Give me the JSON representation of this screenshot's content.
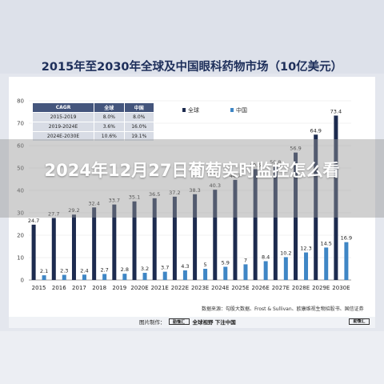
{
  "title": "2015年至2030年全球及中国眼科药物市场（10亿美元）",
  "overlay_title": "2024年12月27日葡萄实时监控怎么看",
  "source_text": "数据来源：勾股大数据、Frost & Sullivan、欧康维视生物招股书、国信证券",
  "footer": {
    "left_prefix": "图片制作：",
    "brand_logo": "勤懂汇",
    "left_suffix": "全球视野 下注中国",
    "right_logo": "勤懂汇"
  },
  "cagr_table": {
    "headers": [
      "CAGR",
      "全球",
      "中国"
    ],
    "rows": [
      [
        "2015-2019",
        "8.0%",
        "8.0%"
      ],
      [
        "2019-2024E",
        "3.6%",
        "16.0%"
      ],
      [
        "2024E-2030E",
        "10.6%",
        "19.1%"
      ]
    ]
  },
  "chart_data": {
    "type": "bar",
    "categories": [
      "2015",
      "2016",
      "2017",
      "2018",
      "2019",
      "2020E",
      "2021E",
      "2022E",
      "2023E",
      "2024E",
      "2025E",
      "2026E",
      "2027E",
      "2028E",
      "2029E",
      "2030E"
    ],
    "series": [
      {
        "name": "全球",
        "color": "#1d2b4f",
        "values": [
          24.7,
          27.7,
          29.2,
          32.4,
          33.7,
          35.1,
          36.5,
          37.2,
          38.3,
          40.3,
          44.7,
          49.5,
          50.8,
          56.9,
          64.9,
          73.4
        ]
      },
      {
        "name": "中国",
        "color": "#3f86c5",
        "values": [
          2.1,
          2.3,
          2.4,
          2.7,
          2.8,
          3.2,
          3.7,
          4.3,
          5.0,
          5.9,
          7.0,
          8.4,
          10.2,
          12.3,
          14.5,
          16.9
        ]
      }
    ],
    "yticks": [
      "0",
      "10",
      "20",
      "30",
      "40",
      "50",
      "60",
      "70",
      "80"
    ],
    "ylim": [
      0,
      80
    ],
    "legend_position": "top"
  }
}
